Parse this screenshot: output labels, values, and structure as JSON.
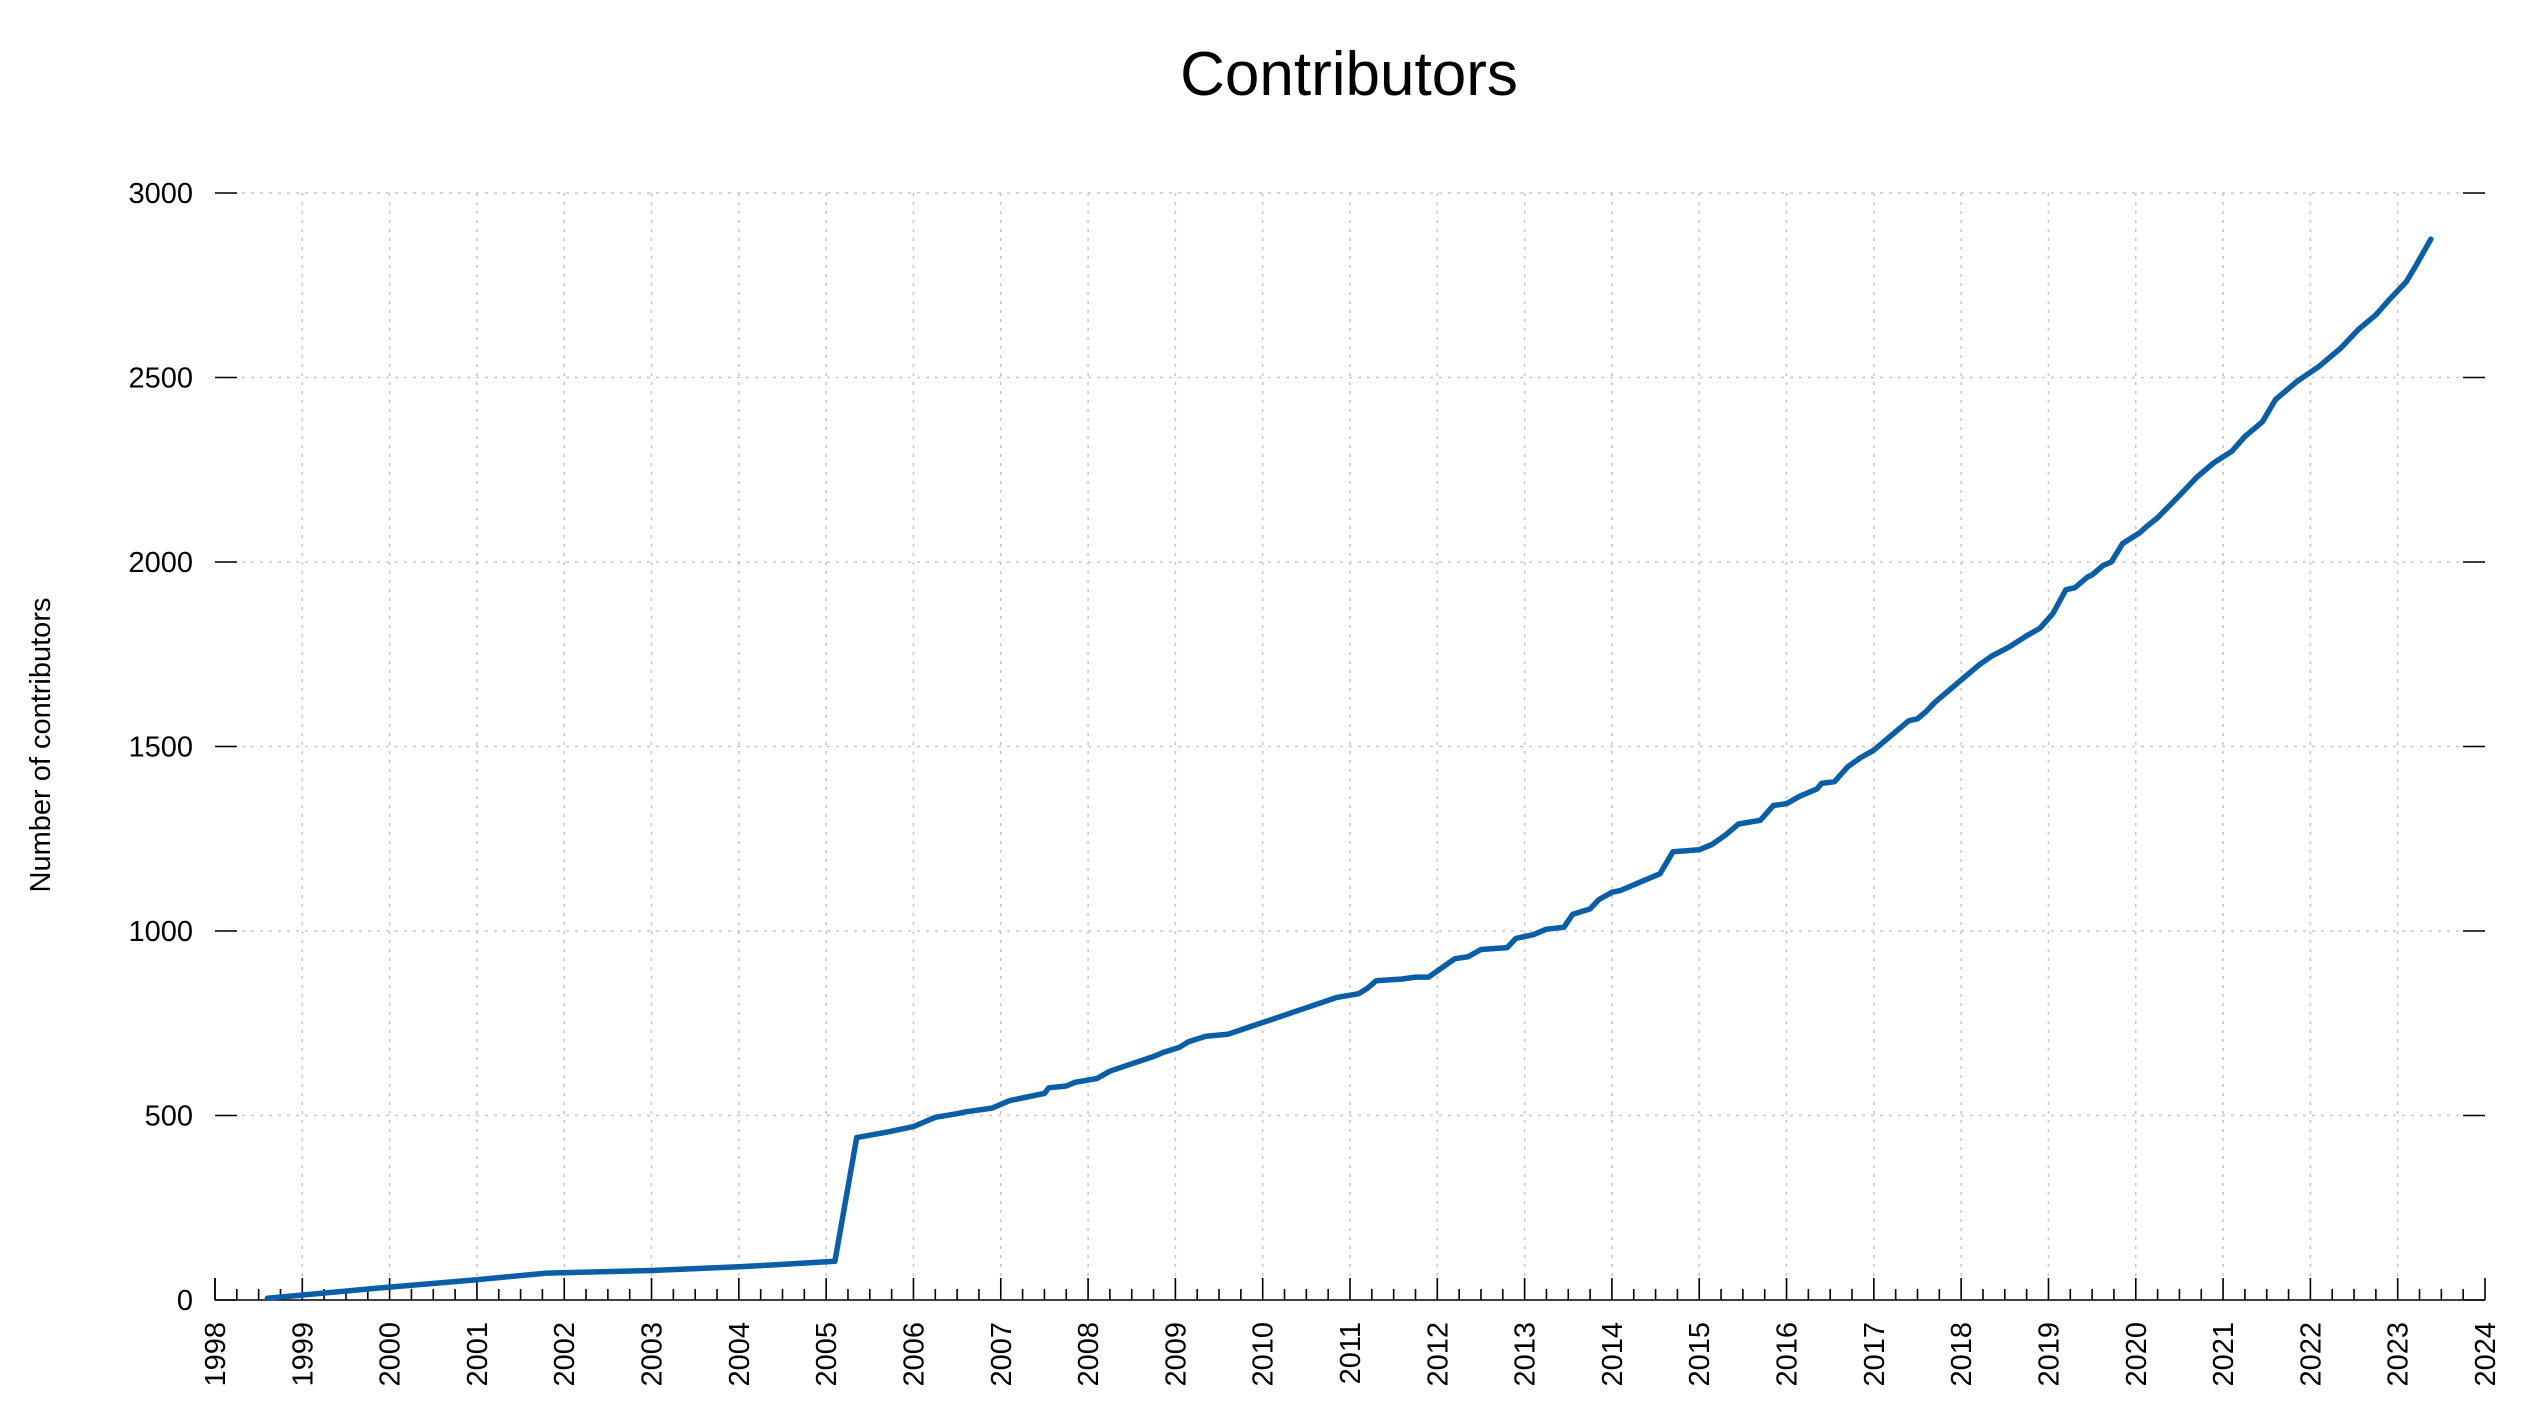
{
  "chart_data": {
    "type": "line",
    "title": "Contributors",
    "ylabel": "Number of contributors",
    "xlabel": "",
    "xlim": [
      1998,
      2024
    ],
    "ylim": [
      0,
      3000
    ],
    "x_ticks": [
      "1998",
      "1999",
      "2000",
      "2001",
      "2002",
      "2003",
      "2004",
      "2005",
      "2006",
      "2007",
      "2008",
      "2009",
      "2010",
      "2011",
      "2012",
      "2013",
      "2014",
      "2015",
      "2016",
      "2017",
      "2018",
      "2019",
      "2020",
      "2021",
      "2022",
      "2023",
      "2024"
    ],
    "y_ticks": [
      "0",
      "500",
      "1000",
      "1500",
      "2000",
      "2500",
      "3000"
    ],
    "grid": true,
    "legend": "none",
    "color": "#0a5ea6",
    "series": [
      {
        "x": [
          1998.6,
          2000.0,
          2001.0,
          2001.8,
          2003.0,
          2004.0,
          2004.4,
          2005.1,
          2005.35,
          2005.7,
          2006.0,
          2006.2,
          2006.25,
          2006.5,
          2006.6,
          2006.9,
          2007.1,
          2007.3,
          2007.5,
          2007.55,
          2007.75,
          2007.85,
          2008.1,
          2008.25,
          2008.5,
          2008.75,
          2008.85,
          2009.05,
          2009.15,
          2009.35,
          2009.6,
          2009.85,
          2010.1,
          2010.35,
          2010.6,
          2010.85,
          2011.1,
          2011.2,
          2011.3,
          2011.6,
          2011.75,
          2011.9,
          2012.05,
          2012.2,
          2012.35,
          2012.5,
          2012.8,
          2012.9,
          2013.1,
          2013.25,
          2013.45,
          2013.55,
          2013.75,
          2013.85,
          2014.0,
          2014.1,
          2014.4,
          2014.55,
          2014.7,
          2015.0,
          2015.15,
          2015.3,
          2015.45,
          2015.7,
          2015.85,
          2016.0,
          2016.15,
          2016.35,
          2016.4,
          2016.55,
          2016.7,
          2016.85,
          2017.0,
          2017.2,
          2017.4,
          2017.5,
          2017.6,
          2017.7,
          2017.85,
          2018.05,
          2018.2,
          2018.35,
          2018.55,
          2018.75,
          2018.9,
          2019.05,
          2019.2,
          2019.3,
          2019.45,
          2019.5,
          2019.6,
          2019.62,
          2019.72,
          2019.85,
          2020.05,
          2020.12,
          2020.25,
          2020.5,
          2020.7,
          2020.9,
          2021.1,
          2021.25,
          2021.45,
          2021.6,
          2021.85,
          2022.1,
          2022.35,
          2022.55,
          2022.75,
          2022.9,
          2023.1,
          2023.2,
          2023.38
        ],
        "y": [
          5,
          35,
          55,
          73,
          80,
          90,
          95,
          105,
          440,
          455,
          470,
          490,
          495,
          505,
          510,
          520,
          540,
          550,
          560,
          575,
          580,
          590,
          600,
          620,
          640,
          660,
          670,
          685,
          700,
          715,
          720,
          740,
          760,
          780,
          800,
          820,
          830,
          845,
          865,
          870,
          875,
          875,
          900,
          925,
          930,
          950,
          955,
          980,
          990,
          1005,
          1010,
          1045,
          1060,
          1085,
          1105,
          1110,
          1140,
          1155,
          1215,
          1220,
          1235,
          1260,
          1290,
          1300,
          1340,
          1345,
          1365,
          1385,
          1400,
          1405,
          1445,
          1470,
          1490,
          1530,
          1570,
          1575,
          1595,
          1620,
          1650,
          1690,
          1720,
          1745,
          1770,
          1800,
          1820,
          1860,
          1925,
          1930,
          1960,
          1965,
          1985,
          1990,
          2000,
          2050,
          2080,
          2095,
          2120,
          2180,
          2230,
          2270,
          2300,
          2340,
          2380,
          2440,
          2490,
          2530,
          2580,
          2630,
          2670,
          2710,
          2760,
          2800,
          2875
        ]
      }
    ]
  }
}
